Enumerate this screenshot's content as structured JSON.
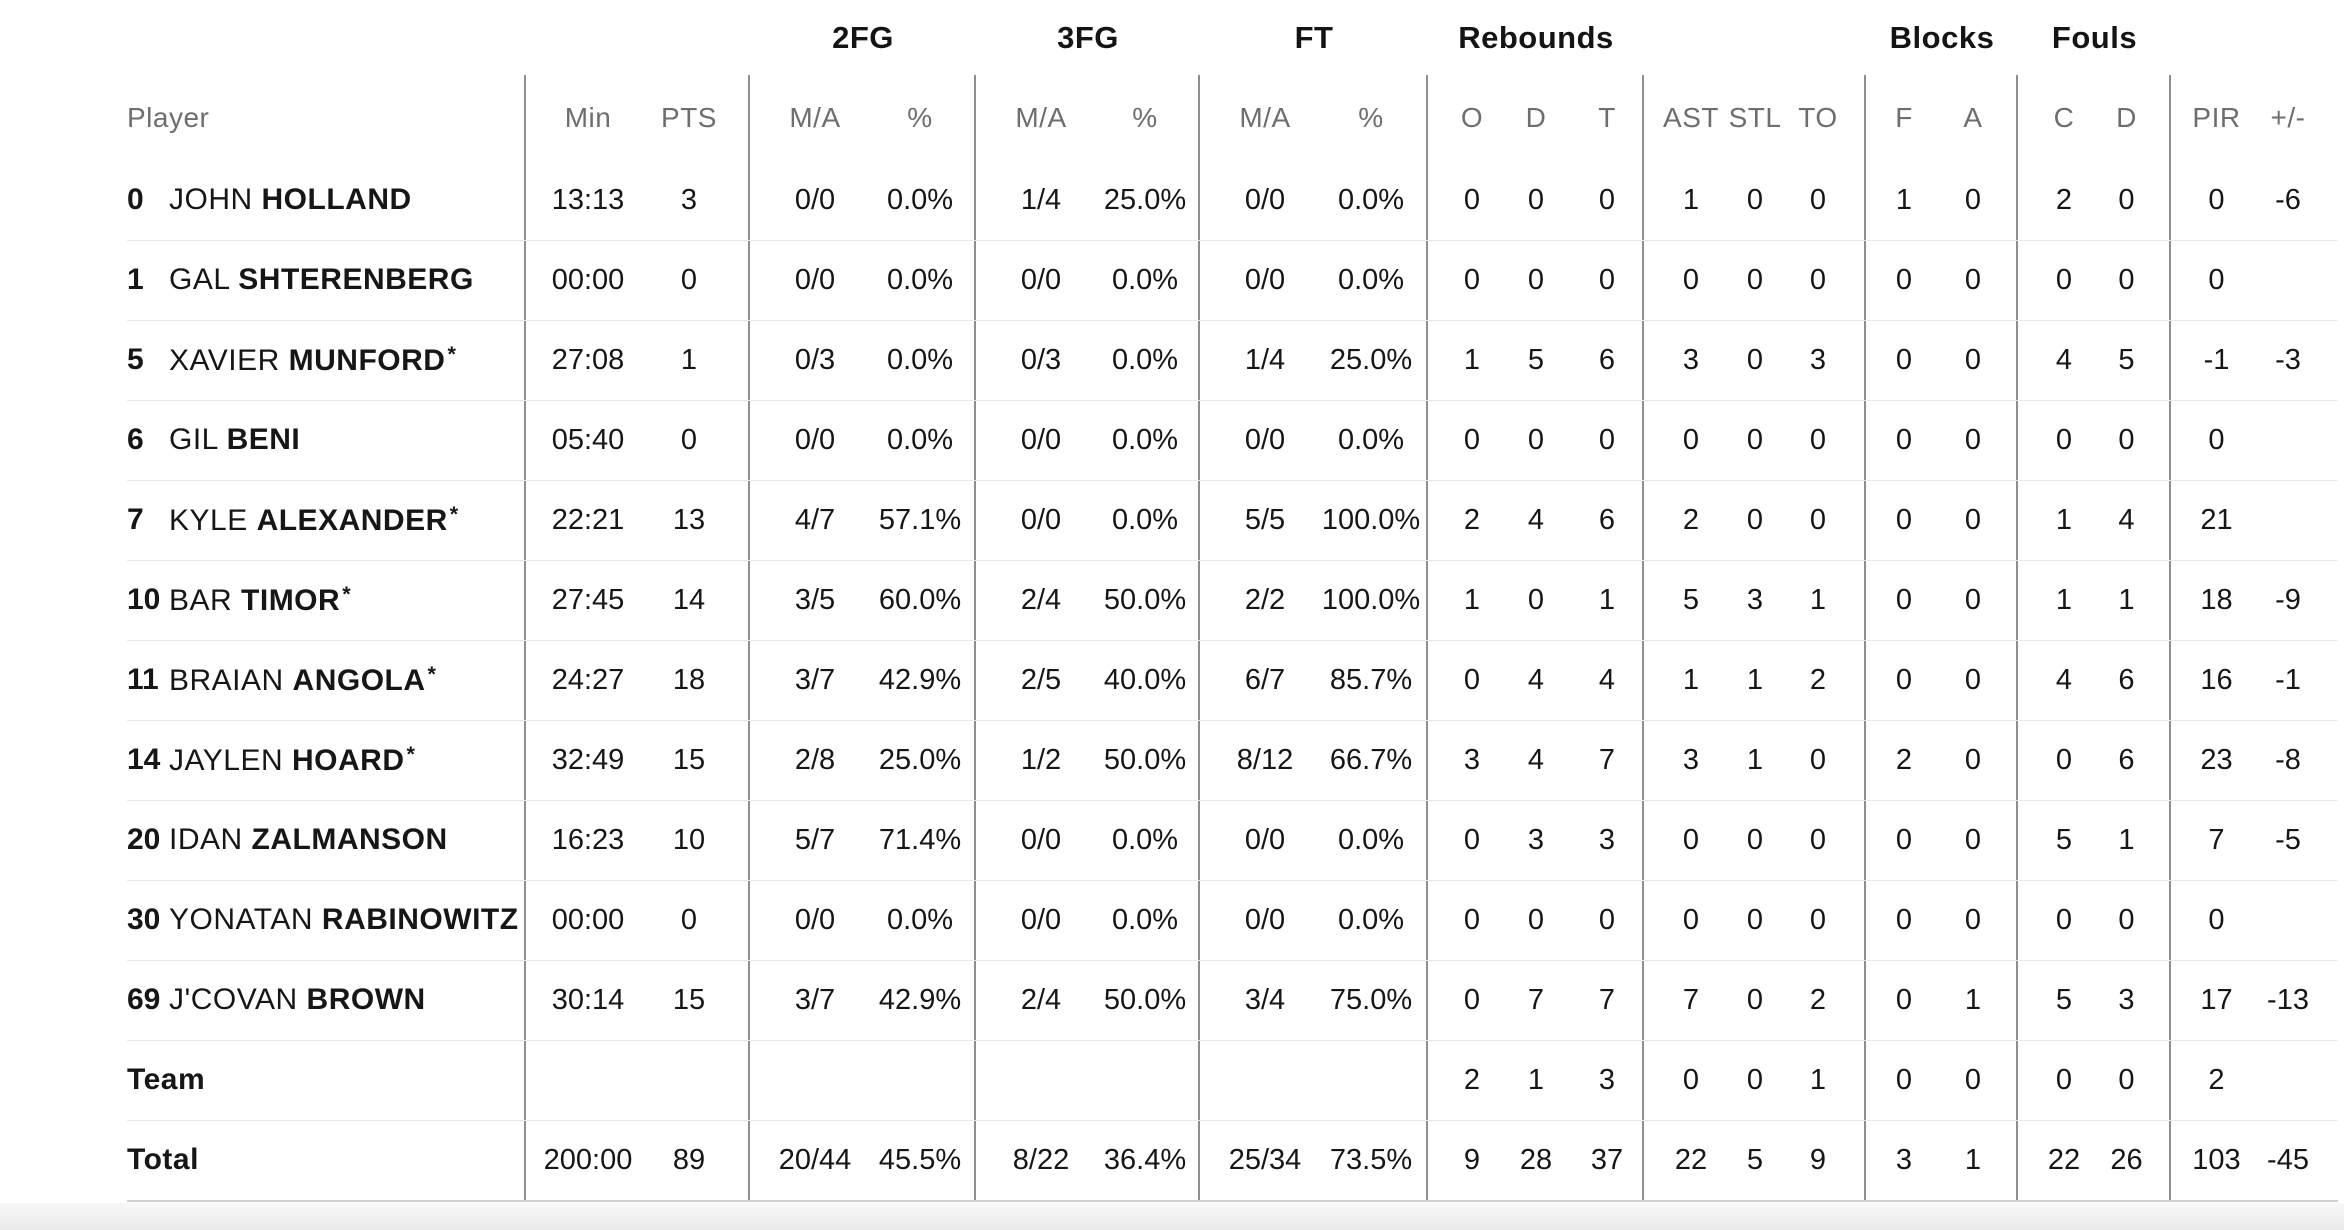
{
  "colors": {
    "background": "#ffffff",
    "text": "#161616",
    "header_text": "#6e6e6e",
    "column_divider": "#8f8f8f",
    "row_separator": "#e9e9e9",
    "table_bottom_border": "#cfcfcf",
    "footer_strip": "#efefef"
  },
  "box_score": {
    "header": {
      "player_label": "Player",
      "min_label": "Min",
      "pts_label": "PTS",
      "groups": [
        {
          "label": "2FG",
          "cols": [
            "M/A",
            "%"
          ]
        },
        {
          "label": "3FG",
          "cols": [
            "M/A",
            "%"
          ]
        },
        {
          "label": "FT",
          "cols": [
            "M/A",
            "%"
          ]
        },
        {
          "label": "Rebounds",
          "cols": [
            "O",
            "D",
            "T"
          ]
        },
        {
          "label": "",
          "cols": [
            "AST",
            "STL",
            "TO"
          ]
        },
        {
          "label": "Blocks",
          "cols": [
            "F",
            "A"
          ]
        },
        {
          "label": "Fouls",
          "cols": [
            "C",
            "D"
          ]
        },
        {
          "label": "",
          "cols": [
            "PIR",
            "+/-"
          ]
        }
      ]
    },
    "players": [
      {
        "number": "0",
        "first_name": "JOHN",
        "last_name": "HOLLAND",
        "starter": false,
        "stats": [
          "13:13",
          "3",
          "0/0",
          "0.0%",
          "1/4",
          "25.0%",
          "0/0",
          "0.0%",
          "0",
          "0",
          "0",
          "1",
          "0",
          "0",
          "1",
          "0",
          "2",
          "0",
          "0",
          "-6"
        ]
      },
      {
        "number": "1",
        "first_name": "GAL",
        "last_name": "SHTERENBERG",
        "starter": false,
        "stats": [
          "00:00",
          "0",
          "0/0",
          "0.0%",
          "0/0",
          "0.0%",
          "0/0",
          "0.0%",
          "0",
          "0",
          "0",
          "0",
          "0",
          "0",
          "0",
          "0",
          "0",
          "0",
          "0",
          ""
        ]
      },
      {
        "number": "5",
        "first_name": "XAVIER",
        "last_name": "MUNFORD",
        "starter": true,
        "stats": [
          "27:08",
          "1",
          "0/3",
          "0.0%",
          "0/3",
          "0.0%",
          "1/4",
          "25.0%",
          "1",
          "5",
          "6",
          "3",
          "0",
          "3",
          "0",
          "0",
          "4",
          "5",
          "-1",
          "-3"
        ]
      },
      {
        "number": "6",
        "first_name": "GIL",
        "last_name": "BENI",
        "starter": false,
        "stats": [
          "05:40",
          "0",
          "0/0",
          "0.0%",
          "0/0",
          "0.0%",
          "0/0",
          "0.0%",
          "0",
          "0",
          "0",
          "0",
          "0",
          "0",
          "0",
          "0",
          "0",
          "0",
          "0",
          ""
        ]
      },
      {
        "number": "7",
        "first_name": "KYLE",
        "last_name": "ALEXANDER",
        "starter": true,
        "stats": [
          "22:21",
          "13",
          "4/7",
          "57.1%",
          "0/0",
          "0.0%",
          "5/5",
          "100.0%",
          "2",
          "4",
          "6",
          "2",
          "0",
          "0",
          "0",
          "0",
          "1",
          "4",
          "21",
          ""
        ]
      },
      {
        "number": "10",
        "first_name": "BAR",
        "last_name": "TIMOR",
        "starter": true,
        "stats": [
          "27:45",
          "14",
          "3/5",
          "60.0%",
          "2/4",
          "50.0%",
          "2/2",
          "100.0%",
          "1",
          "0",
          "1",
          "5",
          "3",
          "1",
          "0",
          "0",
          "1",
          "1",
          "18",
          "-9"
        ]
      },
      {
        "number": "11",
        "first_name": "BRAIAN",
        "last_name": "ANGOLA",
        "starter": true,
        "stats": [
          "24:27",
          "18",
          "3/7",
          "42.9%",
          "2/5",
          "40.0%",
          "6/7",
          "85.7%",
          "0",
          "4",
          "4",
          "1",
          "1",
          "2",
          "0",
          "0",
          "4",
          "6",
          "16",
          "-1"
        ]
      },
      {
        "number": "14",
        "first_name": "JAYLEN",
        "last_name": "HOARD",
        "starter": true,
        "stats": [
          "32:49",
          "15",
          "2/8",
          "25.0%",
          "1/2",
          "50.0%",
          "8/12",
          "66.7%",
          "3",
          "4",
          "7",
          "3",
          "1",
          "0",
          "2",
          "0",
          "0",
          "6",
          "23",
          "-8"
        ]
      },
      {
        "number": "20",
        "first_name": "IDAN",
        "last_name": "ZALMANSON",
        "starter": false,
        "stats": [
          "16:23",
          "10",
          "5/7",
          "71.4%",
          "0/0",
          "0.0%",
          "0/0",
          "0.0%",
          "0",
          "3",
          "3",
          "0",
          "0",
          "0",
          "0",
          "0",
          "5",
          "1",
          "7",
          "-5"
        ]
      },
      {
        "number": "30",
        "first_name": "YONATAN",
        "last_name": "RABINOWITZ",
        "starter": false,
        "stats": [
          "00:00",
          "0",
          "0/0",
          "0.0%",
          "0/0",
          "0.0%",
          "0/0",
          "0.0%",
          "0",
          "0",
          "0",
          "0",
          "0",
          "0",
          "0",
          "0",
          "0",
          "0",
          "0",
          ""
        ]
      },
      {
        "number": "69",
        "first_name": "J'COVAN",
        "last_name": "BROWN",
        "starter": false,
        "stats": [
          "30:14",
          "15",
          "3/7",
          "42.9%",
          "2/4",
          "50.0%",
          "3/4",
          "75.0%",
          "0",
          "7",
          "7",
          "7",
          "0",
          "2",
          "0",
          "1",
          "5",
          "3",
          "17",
          "-13"
        ]
      }
    ],
    "summary_rows": [
      {
        "label": "Team",
        "stats": [
          "",
          "",
          "",
          "",
          "",
          "",
          "",
          "",
          "2",
          "1",
          "3",
          "0",
          "0",
          "1",
          "0",
          "0",
          "0",
          "0",
          "2",
          ""
        ]
      },
      {
        "label": "Total",
        "stats": [
          "200:00",
          "89",
          "20/44",
          "45.5%",
          "8/22",
          "36.4%",
          "25/34",
          "73.5%",
          "9",
          "28",
          "37",
          "22",
          "5",
          "9",
          "3",
          "1",
          "22",
          "26",
          "103",
          "-45"
        ]
      }
    ]
  }
}
